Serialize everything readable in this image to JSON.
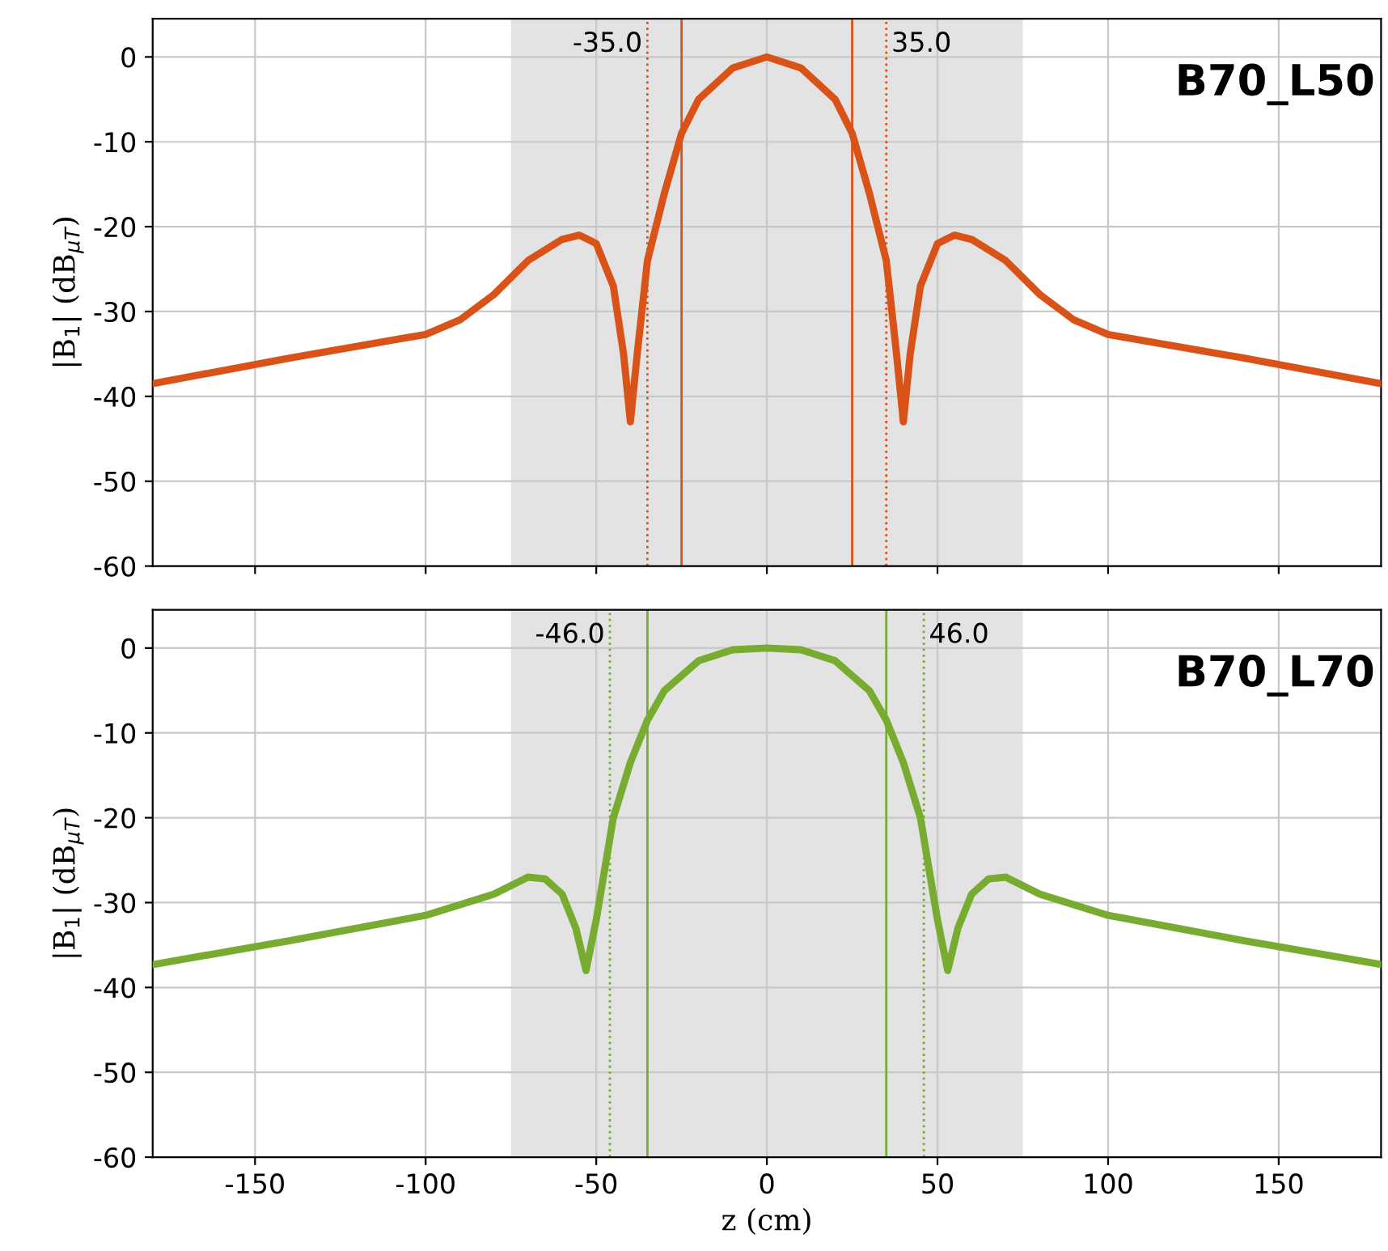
{
  "chart_data": [
    {
      "type": "line",
      "ylabel": "|B$_{1}$| (dB$_{μT}$)",
      "xlim": [
        -180,
        180
      ],
      "ylim": [
        -60,
        4.5
      ],
      "xticks": [
        -150,
        -100,
        -50,
        0,
        50,
        100,
        150
      ],
      "yticks": [
        -60,
        -50,
        -40,
        -30,
        -20,
        -10,
        0
      ],
      "grid": true,
      "tick_labels": "y",
      "legend": false,
      "annotations": [
        "B70_L50"
      ],
      "bands": [
        {
          "axis": "x",
          "from": -75,
          "to": 75,
          "color": "#e3e3e3"
        }
      ],
      "ref_lines": [
        {
          "axis": "x",
          "value": -25,
          "color": "#d95319",
          "line_style": "solid"
        },
        {
          "axis": "x",
          "value": 25,
          "color": "#d95319",
          "line_style": "solid"
        },
        {
          "axis": "x",
          "value": -35,
          "label": "-35.0",
          "color": "#d95319",
          "line_style": "dotted"
        },
        {
          "axis": "x",
          "value": 35,
          "label": "35.0",
          "color": "#d95319",
          "line_style": "dotted"
        }
      ],
      "series": [
        {
          "color": "#d95319",
          "x": [
            -180,
            -140,
            -100,
            -90,
            -80,
            -70,
            -60,
            -55,
            -50,
            -45,
            -42,
            -40,
            -38,
            -35,
            -30,
            -25,
            -20,
            -10,
            0,
            10,
            20,
            25,
            30,
            35,
            38,
            40,
            42,
            45,
            50,
            55,
            60,
            70,
            80,
            90,
            100,
            140,
            180
          ],
          "values": [
            -38.5,
            -35.5,
            -32.7,
            -31,
            -28,
            -24,
            -21.5,
            -21,
            -22,
            -27,
            -35,
            -43,
            -35,
            -24,
            -16,
            -9,
            -5,
            -1.3,
            0,
            -1.3,
            -5,
            -9,
            -16,
            -24,
            -35,
            -43,
            -35,
            -27,
            -22,
            -21,
            -21.5,
            -24,
            -28,
            -31,
            -32.7,
            -35.5,
            -38.5
          ]
        }
      ]
    },
    {
      "type": "line",
      "ylabel": "|B$_{1}$| (dB$_{μT}$)",
      "xlabel": "z (cm)",
      "xlim": [
        -180,
        180
      ],
      "ylim": [
        -60,
        4.5
      ],
      "xticks": [
        -150,
        -100,
        -50,
        0,
        50,
        100,
        150
      ],
      "yticks": [
        -60,
        -50,
        -40,
        -30,
        -20,
        -10,
        0
      ],
      "grid": true,
      "legend": false,
      "annotations": [
        "B70_L70"
      ],
      "bands": [
        {
          "axis": "x",
          "from": -75,
          "to": 75,
          "color": "#e3e3e3"
        }
      ],
      "ref_lines": [
        {
          "axis": "x",
          "value": -35,
          "color": "#77ac30",
          "line_style": "solid"
        },
        {
          "axis": "x",
          "value": 35,
          "color": "#77ac30",
          "line_style": "solid"
        },
        {
          "axis": "x",
          "value": -46,
          "label": "-46.0",
          "color": "#77ac30",
          "line_style": "dotted"
        },
        {
          "axis": "x",
          "value": 46,
          "label": "46.0",
          "color": "#77ac30",
          "line_style": "dotted"
        }
      ],
      "series": [
        {
          "color": "#77ac30",
          "x": [
            -180,
            -140,
            -100,
            -80,
            -70,
            -65,
            -60,
            -56,
            -53,
            -50,
            -45,
            -40,
            -35,
            -30,
            -20,
            -10,
            0,
            10,
            20,
            30,
            35,
            40,
            45,
            50,
            53,
            56,
            60,
            65,
            70,
            80,
            100,
            140,
            180
          ],
          "values": [
            -37.3,
            -34.5,
            -31.5,
            -29,
            -27,
            -27.2,
            -29,
            -33,
            -38,
            -32,
            -20,
            -13.5,
            -8.5,
            -5,
            -1.5,
            -0.2,
            0,
            -0.2,
            -1.5,
            -5,
            -8.5,
            -13.5,
            -20,
            -32,
            -38,
            -33,
            -29,
            -27.2,
            -27,
            -29,
            -31.5,
            -34.5,
            -37.3
          ]
        }
      ]
    }
  ]
}
